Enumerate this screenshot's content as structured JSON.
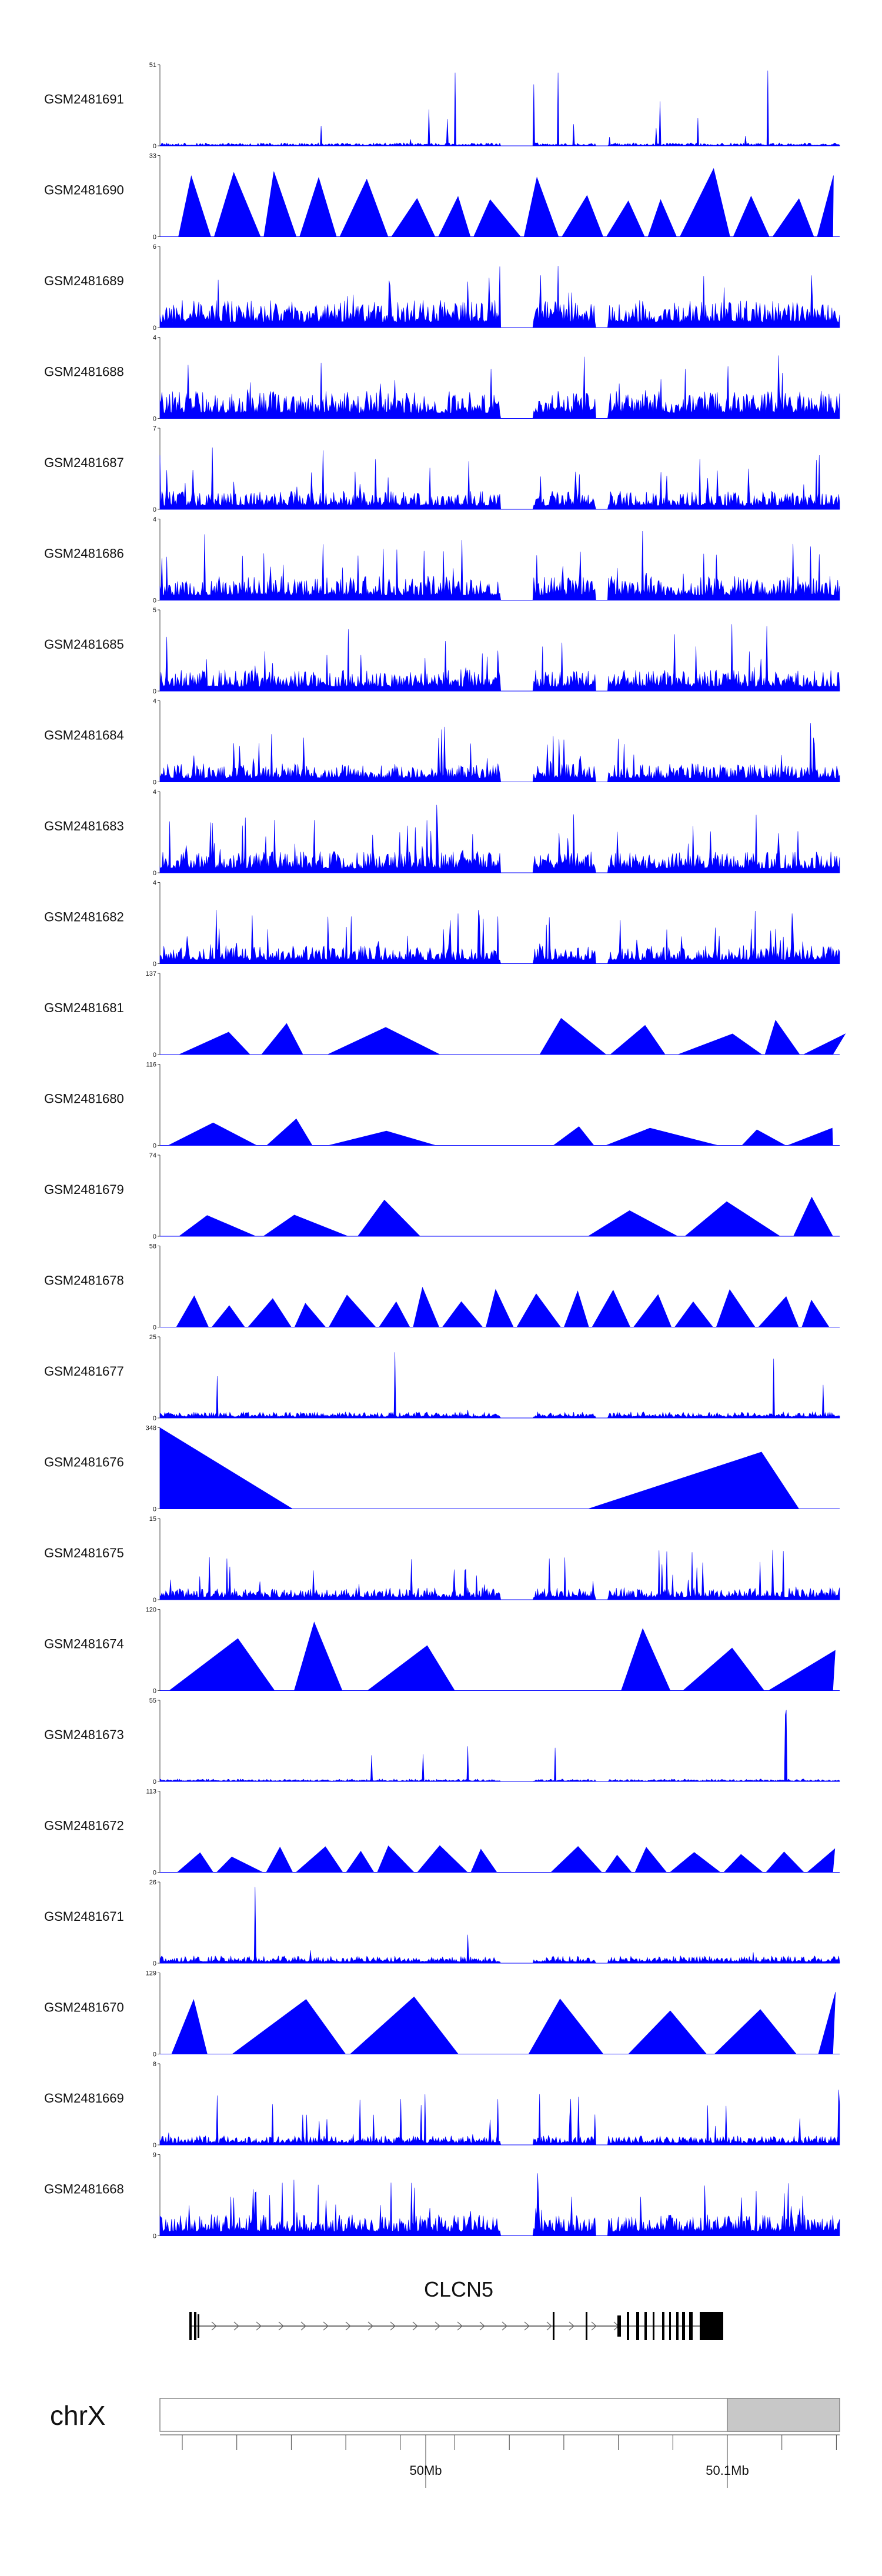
{
  "colors": {
    "signal": "#0000ff",
    "axis": "#444444",
    "exon": "#000000",
    "ideogram_band": "#c8c8c8"
  },
  "chart_data": {
    "type": "area",
    "title": "",
    "gene": {
      "name": "CLCN5",
      "strand": "+"
    },
    "chromosome": "chrX",
    "genome_axis": {
      "ticks": [
        {
          "label": "50Mb",
          "value": 50.0
        },
        {
          "label": "50.1Mb",
          "value": 50.1
        }
      ]
    },
    "tracks": [
      {
        "name": "GSM2481691",
        "ymax": 51,
        "pattern": "noise-spiky",
        "level": 0.05
      },
      {
        "name": "GSM2481690",
        "ymax": 33,
        "pattern": "triangles",
        "level": 0.85
      },
      {
        "name": "GSM2481689",
        "ymax": 6,
        "pattern": "noise",
        "level": 0.45
      },
      {
        "name": "GSM2481688",
        "ymax": 4,
        "pattern": "noise",
        "level": 0.45
      },
      {
        "name": "GSM2481687",
        "ymax": 7,
        "pattern": "noise",
        "level": 0.3
      },
      {
        "name": "GSM2481686",
        "ymax": 4,
        "pattern": "noise",
        "level": 0.4
      },
      {
        "name": "GSM2481685",
        "ymax": 5,
        "pattern": "noise",
        "level": 0.35
      },
      {
        "name": "GSM2481684",
        "ymax": 4,
        "pattern": "noise",
        "level": 0.3
      },
      {
        "name": "GSM2481683",
        "ymax": 4,
        "pattern": "noise",
        "level": 0.35
      },
      {
        "name": "GSM2481682",
        "ymax": 4,
        "pattern": "noise",
        "level": 0.3
      },
      {
        "name": "GSM2481681",
        "ymax": 137,
        "pattern": "triangles-sparse",
        "level": 0.5
      },
      {
        "name": "GSM2481680",
        "ymax": 116,
        "pattern": "triangles-sparse",
        "level": 0.35
      },
      {
        "name": "GSM2481679",
        "ymax": 74,
        "pattern": "triangles-sparse",
        "level": 0.5
      },
      {
        "name": "GSM2481678",
        "ymax": 58,
        "pattern": "triangles",
        "level": 0.5
      },
      {
        "name": "GSM2481677",
        "ymax": 25,
        "pattern": "noise-spiky",
        "level": 0.1
      },
      {
        "name": "GSM2481676",
        "ymax": 348,
        "pattern": "big-ramps",
        "level": 1.0
      },
      {
        "name": "GSM2481675",
        "ymax": 15,
        "pattern": "noise",
        "level": 0.2
      },
      {
        "name": "GSM2481674",
        "ymax": 120,
        "pattern": "triangles-sparse",
        "level": 0.95
      },
      {
        "name": "GSM2481673",
        "ymax": 55,
        "pattern": "noise-spiky",
        "level": 0.04
      },
      {
        "name": "GSM2481672",
        "ymax": 113,
        "pattern": "triangles",
        "level": 0.35
      },
      {
        "name": "GSM2481671",
        "ymax": 26,
        "pattern": "noise-spiky",
        "level": 0.12
      },
      {
        "name": "GSM2481670",
        "ymax": 129,
        "pattern": "triangles-sparse",
        "level": 0.95
      },
      {
        "name": "GSM2481669",
        "ymax": 8,
        "pattern": "noise",
        "level": 0.15
      },
      {
        "name": "GSM2481668",
        "ymax": 9,
        "pattern": "noise",
        "level": 0.35
      }
    ]
  }
}
